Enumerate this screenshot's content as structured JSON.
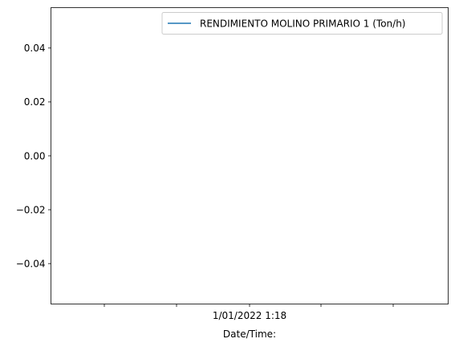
{
  "chart_data": {
    "type": "line",
    "title": "",
    "xlabel": "Date/Time:",
    "ylabel": "",
    "x_ticks": [
      "",
      "",
      "1/01/2022 1:18",
      "",
      ""
    ],
    "y_ticks": [
      0.04,
      0.02,
      0.0,
      -0.02,
      -0.04
    ],
    "y_tick_labels": [
      "0.04",
      "0.02",
      "0.00",
      "−0.02",
      "−0.04"
    ],
    "ylim": [
      -0.055,
      0.055
    ],
    "grid": false,
    "legend_position": "top-right",
    "series": [
      {
        "name": "RENDIMIENTO MOLINO PRIMARIO 1 (Ton/h)",
        "color": "#1f77b4",
        "x": [],
        "values": []
      }
    ]
  }
}
